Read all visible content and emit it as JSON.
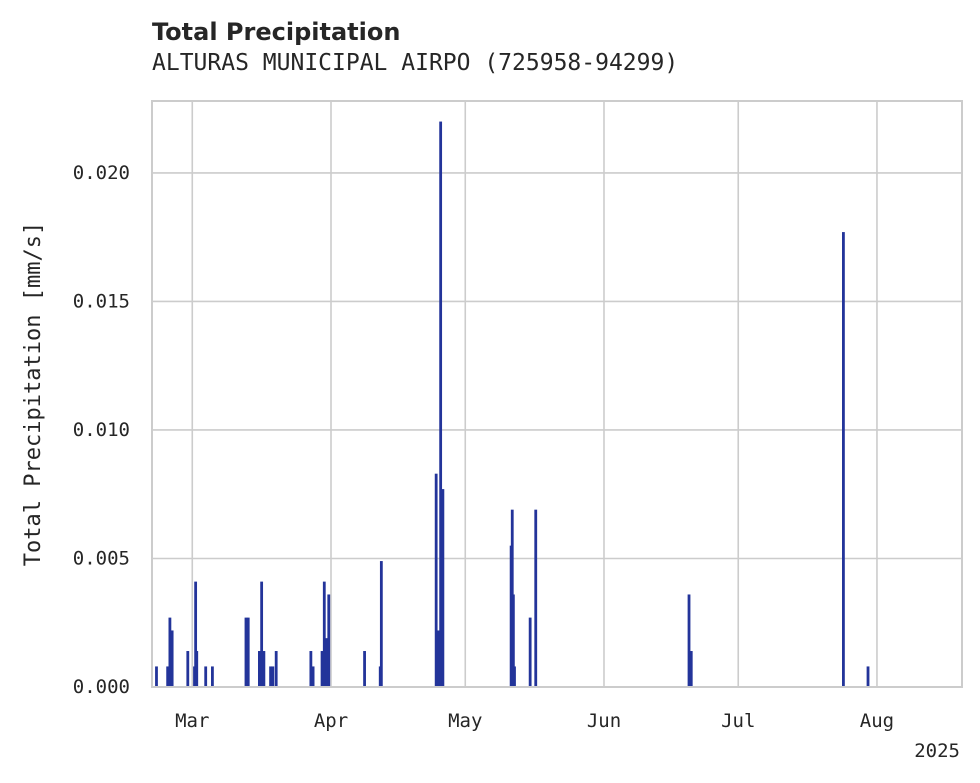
{
  "chart_data": {
    "type": "bar",
    "title": "Total Precipitation",
    "subtitle": "ALTURAS MUNICIPAL AIRPO (725958-94299)",
    "ylabel": "Total Precipitation [mm/s]",
    "xlabel": "",
    "year_label": "2025",
    "grid": true,
    "xlim": [
      "2025-02-20",
      "2025-08-20"
    ],
    "ylim": [
      0,
      0.0228
    ],
    "yticks": [
      0.0,
      0.005,
      0.01,
      0.015,
      0.02
    ],
    "ytick_labels": [
      "0.000",
      "0.005",
      "0.010",
      "0.015",
      "0.020"
    ],
    "xticks": [
      "2025-03-01",
      "2025-04-01",
      "2025-05-01",
      "2025-06-01",
      "2025-07-01",
      "2025-08-01"
    ],
    "xtick_labels": [
      "Mar",
      "Apr",
      "May",
      "Jun",
      "Jul",
      "Aug"
    ],
    "series": [
      {
        "name": "Total Precipitation",
        "color": "#23349a",
        "x": [
          "2025-02-21T00",
          "2025-02-23T12",
          "2025-02-24T00",
          "2025-02-24T12",
          "2025-02-28T00",
          "2025-03-01T12",
          "2025-03-01T18",
          "2025-03-02T00",
          "2025-03-04T00",
          "2025-03-05T12",
          "2025-03-13T00",
          "2025-03-13T12",
          "2025-03-16T00",
          "2025-03-16T12",
          "2025-03-17T00",
          "2025-03-18T12",
          "2025-03-19T00",
          "2025-03-19T18",
          "2025-03-27T12",
          "2025-03-28T00",
          "2025-03-30T00",
          "2025-03-30T12",
          "2025-03-31T00",
          "2025-03-31T12",
          "2025-04-08T12",
          "2025-04-12T00",
          "2025-04-12T06",
          "2025-04-24T12",
          "2025-04-25T00",
          "2025-04-25T12",
          "2025-04-26T00",
          "2025-05-11T06",
          "2025-05-11T12",
          "2025-05-11T18",
          "2025-05-12T00",
          "2025-05-15T12",
          "2025-05-16T18",
          "2025-06-20T00",
          "2025-06-20T12",
          "2025-07-24T12",
          "2025-07-30T00"
        ],
        "values": [
          0.0008,
          0.0008,
          0.0027,
          0.0022,
          0.0014,
          0.0008,
          0.0041,
          0.0014,
          0.0008,
          0.0008,
          0.0027,
          0.0027,
          0.0014,
          0.0041,
          0.0014,
          0.0008,
          0.0008,
          0.0014,
          0.0014,
          0.0008,
          0.0014,
          0.0041,
          0.0019,
          0.0036,
          0.0014,
          0.0008,
          0.0049,
          0.0083,
          0.0022,
          0.022,
          0.0077,
          0.0055,
          0.0069,
          0.0036,
          0.0008,
          0.0027,
          0.0069,
          0.0036,
          0.0014,
          0.0177,
          0.0008
        ]
      }
    ]
  }
}
